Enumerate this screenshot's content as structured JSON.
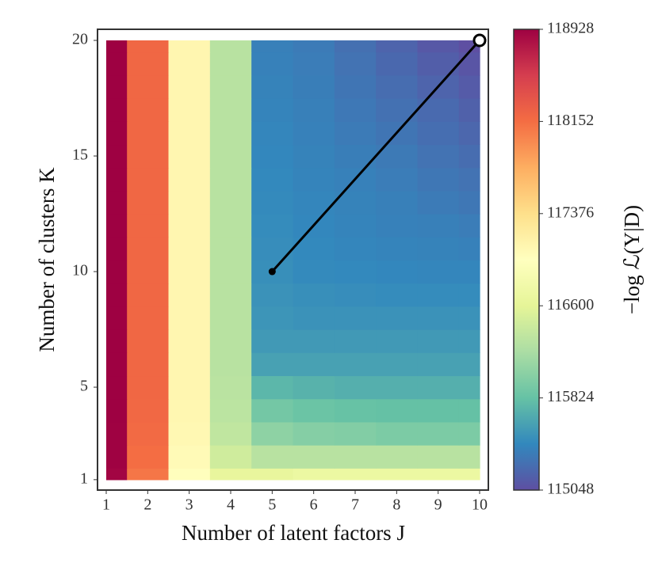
{
  "chart_data": {
    "type": "heatmap",
    "x_label": "Number of latent factors J",
    "y_label": "Number of clusters K",
    "x": [
      1,
      2,
      3,
      4,
      5,
      6,
      7,
      8,
      9,
      10
    ],
    "y": [
      1,
      2,
      3,
      4,
      5,
      6,
      7,
      8,
      9,
      10,
      11,
      12,
      13,
      14,
      15,
      16,
      17,
      18,
      19,
      20
    ],
    "values": [
      [
        118900,
        118100,
        117000,
        116650,
        116650,
        116700,
        116700,
        116700,
        116700,
        116700
      ],
      [
        118920,
        118150,
        117050,
        116450,
        116300,
        116300,
        116300,
        116300,
        116300,
        116300
      ],
      [
        118920,
        118180,
        117080,
        116350,
        116050,
        116000,
        115980,
        115950,
        115950,
        115950
      ],
      [
        118925,
        118190,
        117090,
        116320,
        115900,
        115850,
        115830,
        115820,
        115820,
        115820
      ],
      [
        118928,
        118200,
        117100,
        116310,
        115750,
        115720,
        115700,
        115700,
        115700,
        115700
      ],
      [
        118928,
        118200,
        117100,
        116300,
        115600,
        115600,
        115600,
        115600,
        115600,
        115600
      ],
      [
        118928,
        118200,
        117100,
        116300,
        115550,
        115550,
        115550,
        115550,
        115550,
        115550
      ],
      [
        118928,
        118200,
        117100,
        116300,
        115520,
        115500,
        115500,
        115500,
        115500,
        115500
      ],
      [
        118928,
        118200,
        117100,
        116300,
        115500,
        115480,
        115470,
        115460,
        115460,
        115460
      ],
      [
        118928,
        118200,
        117100,
        116300,
        115480,
        115450,
        115440,
        115430,
        115420,
        115420
      ],
      [
        118928,
        118200,
        117100,
        116300,
        115470,
        115440,
        115420,
        115410,
        115400,
        115390
      ],
      [
        118928,
        118200,
        117100,
        116300,
        115460,
        115430,
        115410,
        115390,
        115380,
        115360
      ],
      [
        118928,
        118200,
        117100,
        116300,
        115450,
        115420,
        115400,
        115380,
        115350,
        115320
      ],
      [
        118928,
        118200,
        117100,
        116300,
        115440,
        115410,
        115390,
        115360,
        115320,
        115290
      ],
      [
        118928,
        118200,
        117100,
        116300,
        115430,
        115400,
        115370,
        115340,
        115290,
        115250
      ],
      [
        118928,
        118200,
        117100,
        116300,
        115420,
        115390,
        115350,
        115310,
        115260,
        115210
      ],
      [
        118928,
        118200,
        117100,
        116300,
        115410,
        115380,
        115330,
        115280,
        115230,
        115170
      ],
      [
        118928,
        118200,
        117100,
        116300,
        115400,
        115370,
        115310,
        115250,
        115190,
        115130
      ],
      [
        118928,
        118200,
        117100,
        116300,
        115390,
        115360,
        115290,
        115220,
        115150,
        115090
      ],
      [
        118928,
        118200,
        117100,
        116300,
        115380,
        115350,
        115270,
        115190,
        115110,
        115048
      ]
    ],
    "colormap": [
      "#5e4fa2",
      "#3288bd",
      "#66c2a5",
      "#abdda4",
      "#e6f598",
      "#ffffbf",
      "#fee08b",
      "#fdae61",
      "#f46d43",
      "#d53e4f",
      "#9e0142"
    ],
    "xlim": [
      0.79,
      10.21
    ],
    "ylim": [
      0.55,
      20.48
    ],
    "xticks": [
      1,
      2,
      3,
      4,
      5,
      6,
      7,
      8,
      9,
      10
    ],
    "yticks": [
      1,
      5,
      10,
      15,
      20
    ],
    "path": {
      "x": [
        5,
        10
      ],
      "y": [
        10,
        20
      ],
      "color": "#000000"
    },
    "colorbar": {
      "label": "−log ℒ(Y|D)",
      "lim": [
        115048,
        118928
      ],
      "ticks": [
        115048,
        115824,
        116600,
        117376,
        118152,
        118928
      ]
    }
  }
}
